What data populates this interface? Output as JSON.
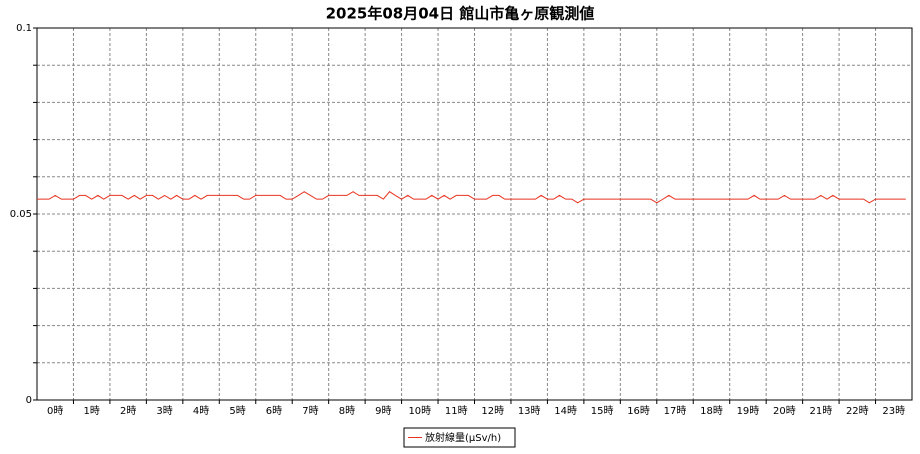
{
  "chart_data": {
    "type": "line",
    "title": "2025年08月04日 館山市亀ヶ原観測値",
    "xlim": [
      0,
      24
    ],
    "xticks": [
      {
        "value": 0.5,
        "label": "0時"
      },
      {
        "value": 1.5,
        "label": "1時"
      },
      {
        "value": 2.5,
        "label": "2時"
      },
      {
        "value": 3.5,
        "label": "3時"
      },
      {
        "value": 4.5,
        "label": "4時"
      },
      {
        "value": 5.5,
        "label": "5時"
      },
      {
        "value": 6.5,
        "label": "6時"
      },
      {
        "value": 7.5,
        "label": "7時"
      },
      {
        "value": 8.5,
        "label": "8時"
      },
      {
        "value": 9.5,
        "label": "9時"
      },
      {
        "value": 10.5,
        "label": "10時"
      },
      {
        "value": 11.5,
        "label": "11時"
      },
      {
        "value": 12.5,
        "label": "12時"
      },
      {
        "value": 13.5,
        "label": "13時"
      },
      {
        "value": 14.5,
        "label": "14時"
      },
      {
        "value": 15.5,
        "label": "15時"
      },
      {
        "value": 16.5,
        "label": "16時"
      },
      {
        "value": 17.5,
        "label": "17時"
      },
      {
        "value": 18.5,
        "label": "18時"
      },
      {
        "value": 19.5,
        "label": "19時"
      },
      {
        "value": 20.5,
        "label": "20時"
      },
      {
        "value": 21.5,
        "label": "21時"
      },
      {
        "value": 22.5,
        "label": "22時"
      },
      {
        "value": 23.5,
        "label": "23時"
      }
    ],
    "xgrid": [
      1,
      2,
      3,
      4,
      5,
      6,
      7,
      8,
      9,
      10,
      11,
      12,
      13,
      14,
      15,
      16,
      17,
      18,
      19,
      20,
      21,
      22,
      23
    ],
    "ylim": [
      0,
      0.1
    ],
    "yticks": [
      0,
      0.05,
      0.1
    ],
    "ygrid": [
      0.01,
      0.02,
      0.03,
      0.04,
      0.05,
      0.06,
      0.07,
      0.08,
      0.09
    ],
    "grid": true,
    "legend": "bottom",
    "x": [
      0,
      0.17,
      0.33,
      0.5,
      0.67,
      0.83,
      1,
      1.17,
      1.33,
      1.5,
      1.67,
      1.83,
      2,
      2.17,
      2.33,
      2.5,
      2.67,
      2.83,
      3,
      3.17,
      3.33,
      3.5,
      3.67,
      3.83,
      4,
      4.17,
      4.33,
      4.5,
      4.67,
      4.83,
      5,
      5.17,
      5.33,
      5.5,
      5.67,
      5.83,
      6,
      6.17,
      6.33,
      6.5,
      6.67,
      6.83,
      7,
      7.17,
      7.33,
      7.5,
      7.67,
      7.83,
      8,
      8.17,
      8.33,
      8.5,
      8.67,
      8.83,
      9,
      9.17,
      9.33,
      9.5,
      9.67,
      9.83,
      10,
      10.17,
      10.33,
      10.5,
      10.67,
      10.83,
      11,
      11.17,
      11.33,
      11.5,
      11.67,
      11.83,
      12,
      12.17,
      12.33,
      12.5,
      12.67,
      12.83,
      13,
      13.17,
      13.33,
      13.5,
      13.67,
      13.83,
      14,
      14.17,
      14.33,
      14.5,
      14.67,
      14.83,
      15,
      15.17,
      15.33,
      15.5,
      15.67,
      15.83,
      16,
      16.17,
      16.33,
      16.5,
      16.67,
      16.83,
      17,
      17.17,
      17.33,
      17.5,
      17.67,
      17.83,
      18,
      18.17,
      18.33,
      18.5,
      18.67,
      18.83,
      19,
      19.17,
      19.33,
      19.5,
      19.67,
      19.83,
      20,
      20.17,
      20.33,
      20.5,
      20.67,
      20.83,
      21,
      21.17,
      21.33,
      21.5,
      21.67,
      21.83,
      22,
      22.17,
      22.33,
      22.5,
      22.67,
      22.83,
      23,
      23.17,
      23.33,
      23.5,
      23.67,
      23.83
    ],
    "series": [
      {
        "name": "放射線量(μSv/h)",
        "color": "#e8321e",
        "values": [
          0.054,
          0.054,
          0.054,
          0.055,
          0.054,
          0.054,
          0.054,
          0.055,
          0.055,
          0.054,
          0.055,
          0.054,
          0.055,
          0.055,
          0.055,
          0.054,
          0.055,
          0.054,
          0.055,
          0.055,
          0.054,
          0.055,
          0.054,
          0.055,
          0.054,
          0.054,
          0.055,
          0.054,
          0.055,
          0.055,
          0.055,
          0.055,
          0.055,
          0.055,
          0.054,
          0.054,
          0.055,
          0.055,
          0.055,
          0.055,
          0.055,
          0.054,
          0.054,
          0.055,
          0.056,
          0.055,
          0.054,
          0.054,
          0.055,
          0.055,
          0.055,
          0.055,
          0.056,
          0.055,
          0.055,
          0.055,
          0.055,
          0.054,
          0.056,
          0.055,
          0.054,
          0.055,
          0.054,
          0.054,
          0.054,
          0.055,
          0.054,
          0.055,
          0.054,
          0.055,
          0.055,
          0.055,
          0.054,
          0.054,
          0.054,
          0.055,
          0.055,
          0.054,
          0.054,
          0.054,
          0.054,
          0.054,
          0.054,
          0.055,
          0.054,
          0.054,
          0.055,
          0.054,
          0.054,
          0.053,
          0.054,
          0.054,
          0.054,
          0.054,
          0.054,
          0.054,
          0.054,
          0.054,
          0.054,
          0.054,
          0.054,
          0.054,
          0.053,
          0.054,
          0.055,
          0.054,
          0.054,
          0.054,
          0.054,
          0.054,
          0.054,
          0.054,
          0.054,
          0.054,
          0.054,
          0.054,
          0.054,
          0.054,
          0.055,
          0.054,
          0.054,
          0.054,
          0.054,
          0.055,
          0.054,
          0.054,
          0.054,
          0.054,
          0.054,
          0.055,
          0.054,
          0.055,
          0.054,
          0.054,
          0.054,
          0.054,
          0.054,
          0.053,
          0.054,
          0.054,
          0.054,
          0.054,
          0.054,
          0.054
        ]
      }
    ]
  }
}
